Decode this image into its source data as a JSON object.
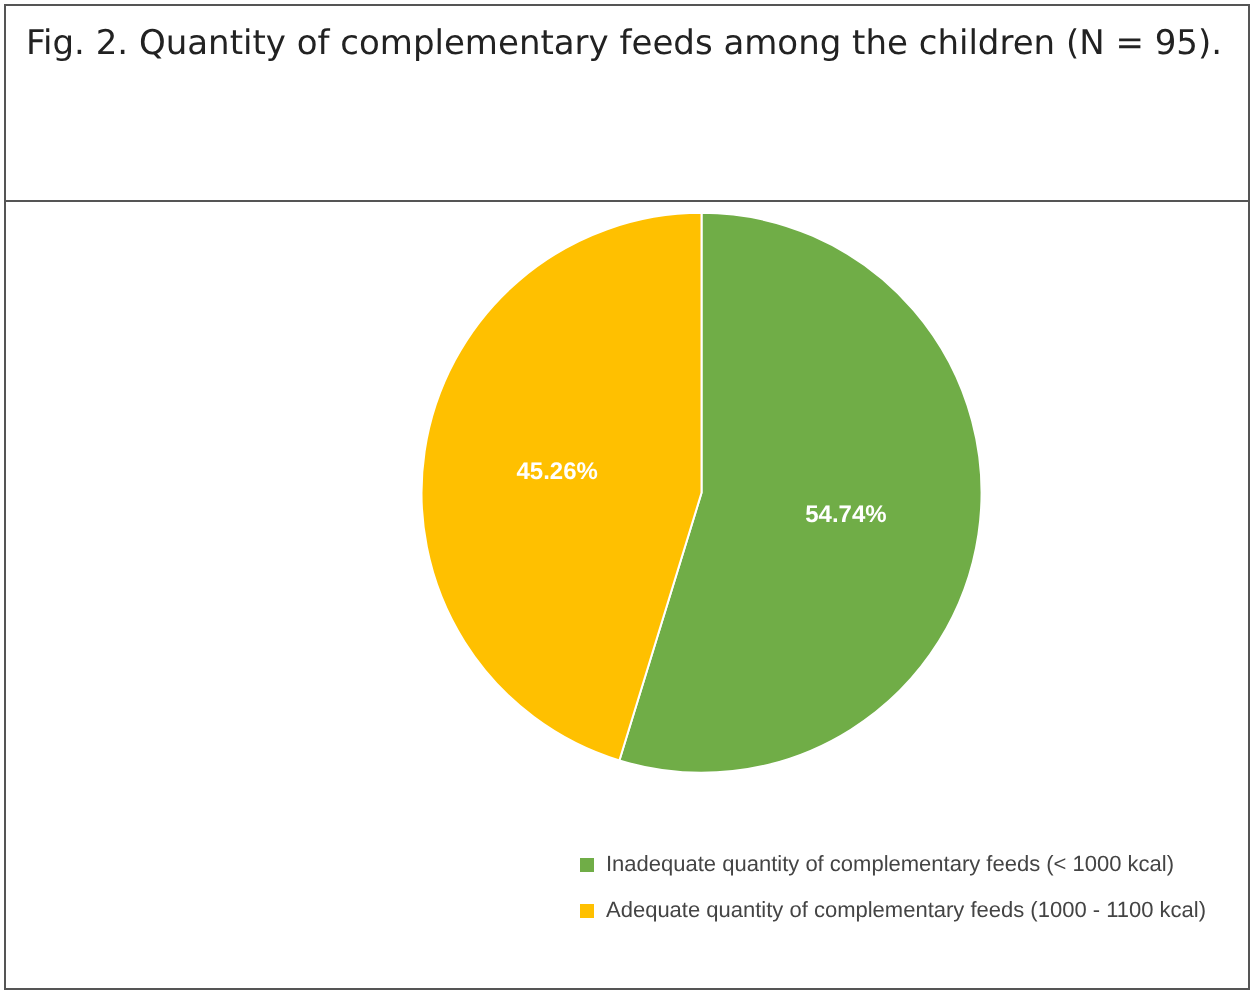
{
  "chart_data": {
    "type": "pie",
    "title": "Fig. 2. Quantity of complementary feeds among the children (N = 95).",
    "categories": [
      "Inadequate quantity of complementary feeds (< 1000 kcal)",
      "Adequate quantity of complementary feeds (1000 - 1100 kcal)"
    ],
    "values": [
      54.74,
      45.26
    ],
    "colors": [
      "#70ad47",
      "#ffc000"
    ],
    "value_labels": [
      "54.74%",
      "45.26%"
    ],
    "legend": "bottom"
  }
}
